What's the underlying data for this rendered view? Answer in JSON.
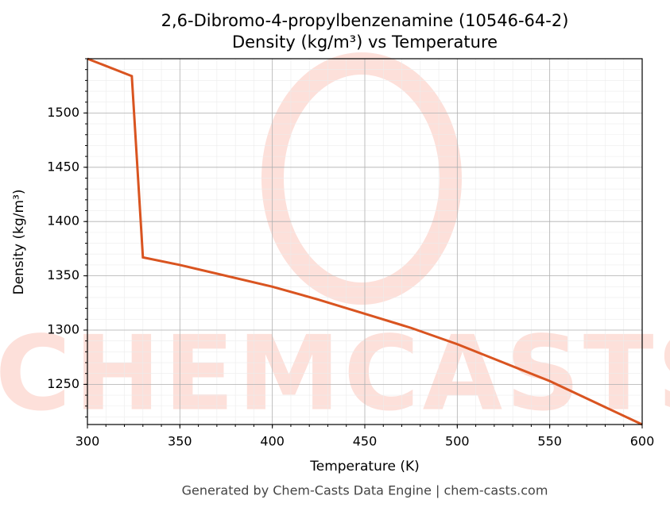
{
  "chart_data": {
    "type": "line",
    "title": "2,6-Dibromo-4-propylbenzenamine (10546-64-2)",
    "subtitle": "Density (kg/m³) vs Temperature",
    "x_label": "Temperature (K)",
    "y_label": "Density (kg/m³)",
    "footer": "Generated by Chem-Casts Data Engine | chem-casts.com",
    "watermark": "CHEMCASTS",
    "x": [
      300,
      324,
      330,
      350,
      400,
      425,
      450,
      475,
      500,
      525,
      550,
      575,
      600
    ],
    "series": [
      {
        "name": "Density",
        "color": "#d95420",
        "values": [
          1550,
          1534,
          1367,
          1360,
          1340,
          1328,
          1315,
          1302,
          1287,
          1270,
          1253,
          1233,
          1213
        ]
      }
    ],
    "xlim": [
      300,
      600
    ],
    "ylim": [
      1213,
      1550
    ],
    "xticks": [
      300,
      350,
      400,
      450,
      500,
      550,
      600
    ],
    "yticks": [
      1250,
      1300,
      1350,
      1400,
      1450,
      1500
    ],
    "grid": true,
    "minor_grid": true
  }
}
